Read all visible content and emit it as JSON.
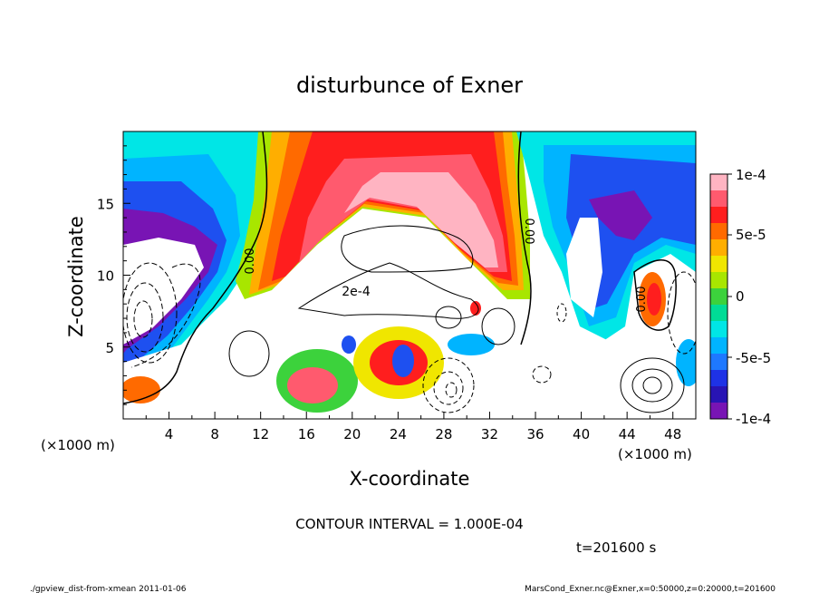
{
  "chart_data": {
    "type": "heatmap",
    "title": "disturbunce of Exner",
    "xlabel": "X-coordinate",
    "ylabel": "Z-coordinate",
    "xunit_left": "(×1000 m)",
    "xunit_right": "(×1000 m)",
    "xlim": [
      0,
      50
    ],
    "ylim": [
      0,
      20
    ],
    "xticks": [
      "4",
      "8",
      "12",
      "16",
      "20",
      "24",
      "28",
      "32",
      "36",
      "40",
      "44",
      "48"
    ],
    "yticks": [
      "5",
      "10",
      "15"
    ],
    "colorbar": {
      "range": [
        -0.0001,
        0.0001
      ],
      "labels": [
        "1e-4",
        "5e-5",
        "0",
        "-5e-5",
        "-1e-4"
      ],
      "colors": [
        "#ffb4c2",
        "#ff5a6e",
        "#ff1e1e",
        "#ff6a00",
        "#ffae00",
        "#f0e600",
        "#a8e600",
        "#3cd23c",
        "#00dc96",
        "#00e6e6",
        "#00b4ff",
        "#1e78ff",
        "#1e32e6",
        "#2814b4",
        "#7814b4"
      ]
    },
    "contour_labels": [
      "0.00",
      "0.00",
      "2e-4",
      "0.00"
    ],
    "contour_interval": "CONTOUR INTERVAL = 1.000E-04",
    "time": "t=201600 s"
  },
  "footer": {
    "left": "./gpview_dist-from-xmean  2011-01-06",
    "right": "MarsCond_Exner.nc@Exner,x=0:50000,z=0:20000,t=201600"
  }
}
